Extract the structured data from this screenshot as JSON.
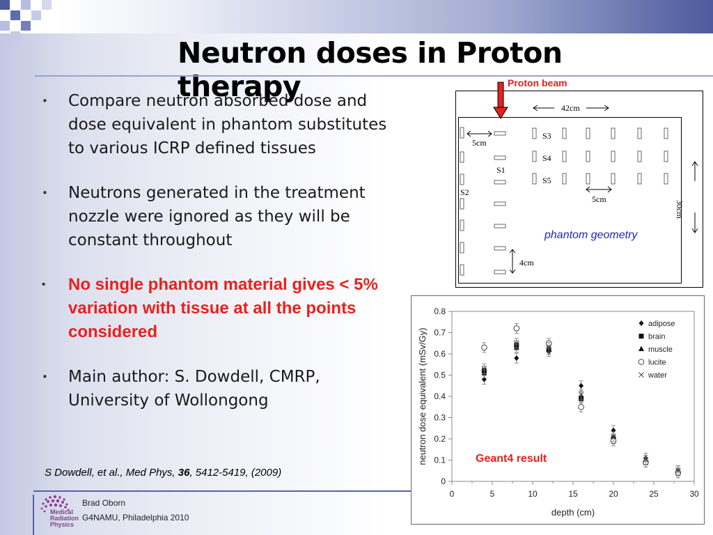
{
  "slide": {
    "title": "Neutron doses in Proton therapy",
    "colors": {
      "accent": "#5763a4",
      "highlight": "#e8211c",
      "label_blue": "#1f23c8"
    },
    "bullets": [
      {
        "text": "Compare neutron absorbed dose and dose equivalent in phantom substitutes to various ICRP defined tissues",
        "emphasis": false
      },
      {
        "text": "Neutrons generated in the treatment nozzle were ignored as they will be constant throughout",
        "emphasis": false
      },
      {
        "text": "No single phantom material gives < 5% variation with tissue at all the points considered",
        "emphasis": true
      },
      {
        "text": "Main author: S. Dowdell, CMRP, University of Wollongong",
        "emphasis": false
      }
    ],
    "citation": {
      "authors": "S Dowdell, et al., Med Phys, ",
      "volume": "36",
      "pages": ", 5412-5419, (2009)"
    },
    "footer": {
      "author": "Brad Oborn",
      "event": "G4NAMU, Philadelphia 2010",
      "logo_lines": [
        "Centre for",
        "Medical",
        "Radiation",
        "Physics"
      ]
    }
  },
  "phantom": {
    "beam_label": "Proton beam",
    "width_label": "42cm",
    "height_label": "30cm",
    "offset_label": "5cm",
    "spacing_label": "5cm",
    "depth_label": "4cm",
    "sets": [
      "S1",
      "S2",
      "S3",
      "S4",
      "S5"
    ],
    "caption": "phantom geometry"
  },
  "chart_data": {
    "type": "scatter",
    "title": "",
    "xlabel": "depth (cm)",
    "ylabel": "neutron dose equivalent (mSv/Gy)",
    "xlim": [
      0,
      30
    ],
    "ylim": [
      0,
      0.8
    ],
    "xticks": [
      0,
      5,
      10,
      15,
      20,
      25,
      30
    ],
    "yticks": [
      0,
      0.1,
      0.2,
      0.3,
      0.4,
      0.5,
      0.6,
      0.7,
      0.8
    ],
    "grid": false,
    "legend_position": "top-right",
    "annotation": "Geant4 result",
    "x": [
      4,
      8,
      12,
      16,
      20,
      24,
      28
    ],
    "series": [
      {
        "name": "adipose",
        "marker": "diamond",
        "values": [
          0.48,
          0.58,
          0.61,
          0.45,
          0.24,
          0.11,
          0.05
        ]
      },
      {
        "name": "brain",
        "marker": "square",
        "values": [
          0.52,
          0.64,
          0.62,
          0.39,
          0.2,
          0.09,
          0.04
        ]
      },
      {
        "name": "muscle",
        "marker": "triangle",
        "values": [
          0.51,
          0.63,
          0.62,
          0.4,
          0.21,
          0.1,
          0.05
        ]
      },
      {
        "name": "lucite",
        "marker": "circle",
        "values": [
          0.63,
          0.72,
          0.65,
          0.35,
          0.19,
          0.09,
          0.04
        ]
      },
      {
        "name": "water",
        "marker": "cross",
        "values": [
          0.53,
          0.65,
          0.63,
          0.41,
          0.21,
          0.1,
          0.05
        ]
      }
    ]
  }
}
